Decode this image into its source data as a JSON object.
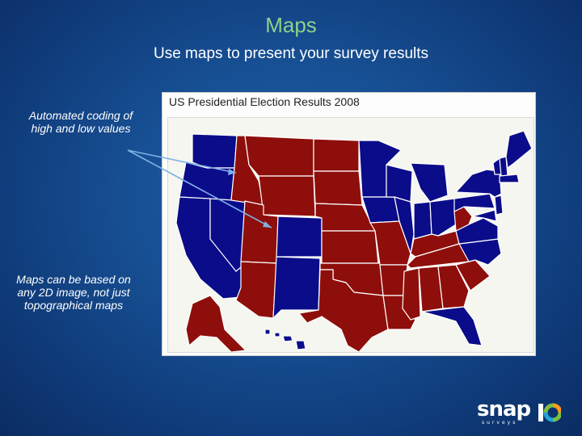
{
  "slide": {
    "title": "Maps",
    "subtitle": "Use maps to present your survey results",
    "note_automated": "Automated coding of high and low values",
    "note_image": "Maps can be based on any 2D image, not just topographical maps"
  },
  "map": {
    "title": "US Presidential Election Results 2008",
    "colors": {
      "republican": "#8e0e0b",
      "democratic": "#0b0c8a",
      "border": "#ffffff"
    },
    "blue_states": [
      "WA",
      "OR",
      "CA",
      "NV",
      "CO",
      "NM",
      "MN",
      "WI",
      "IA",
      "IL",
      "MI",
      "IN",
      "OH",
      "VA",
      "NC",
      "FL",
      "PA",
      "NY",
      "ME",
      "VT",
      "NH",
      "MA",
      "NJ",
      "MD",
      "HI"
    ],
    "red_states": [
      "MT",
      "ID",
      "WY",
      "UT",
      "AZ",
      "ND",
      "SD",
      "NE",
      "KS",
      "OK",
      "TX",
      "MO",
      "AR",
      "LA",
      "KY",
      "TN",
      "MS",
      "AL",
      "GA",
      "SC",
      "WV",
      "AK"
    ]
  },
  "logo": {
    "word": "snap",
    "sub": "surveys",
    "badge": "10",
    "colors": [
      "#ff9a1f",
      "#7bc043",
      "#1fa3d9"
    ]
  }
}
